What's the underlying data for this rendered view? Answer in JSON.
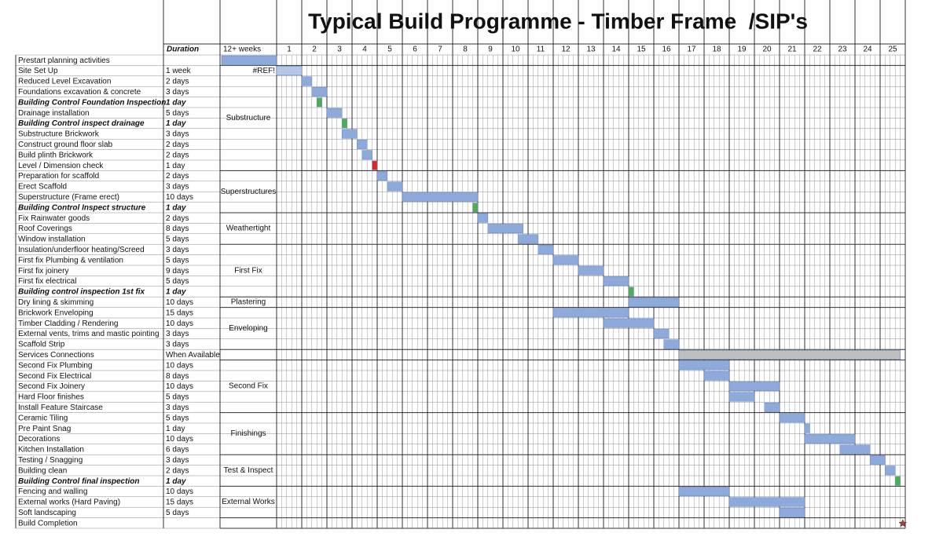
{
  "chart_data": {
    "type": "gantt",
    "title": "Typical Build Programme - Timber Frame  /SIP's",
    "duration_header": "Duration",
    "lead_header": "12+ weeks",
    "xlim": [
      0,
      25
    ],
    "xticks": [
      1,
      2,
      3,
      4,
      5,
      6,
      7,
      8,
      9,
      10,
      11,
      12,
      13,
      14,
      15,
      16,
      17,
      18,
      19,
      20,
      21,
      22,
      23,
      24,
      25
    ],
    "tasks": [
      {
        "name": "Prestart planning activities"
      },
      {
        "name": "Site Set Up",
        "duration": "1 week",
        "note": "#REF!",
        "start": 0,
        "end": 1,
        "color": "#b4c7e7"
      },
      {
        "name": "Reduced Level Excavation",
        "duration": "2 days",
        "start": 1,
        "end": 1.4,
        "color": "#8eaadb"
      },
      {
        "name": "Foundations excavation & concrete",
        "duration": "3 days",
        "start": 1.4,
        "end": 2,
        "color": "#8eaadb"
      },
      {
        "name": "Building Control Foundation Inspection",
        "duration": "1 day",
        "emphasis": true,
        "start": 1.6,
        "end": 1.8,
        "color": "#4caf50"
      },
      {
        "name": "Drainage installation",
        "duration": "5 days",
        "start": 2,
        "end": 2.6,
        "color": "#8eaadb"
      },
      {
        "name": "Building Control inspect drainage",
        "duration": "1 day",
        "emphasis": true,
        "start": 2.6,
        "end": 2.8,
        "color": "#4caf50"
      },
      {
        "name": "Substructure Brickwork",
        "duration": "3 days",
        "start": 2.6,
        "end": 3.2,
        "color": "#8eaadb"
      },
      {
        "name": "Construct ground floor slab",
        "duration": "2 days",
        "start": 3.2,
        "end": 3.6,
        "color": "#8eaadb"
      },
      {
        "name": "Build plinth Brickwork",
        "duration": "2 days",
        "start": 3.4,
        "end": 3.8,
        "color": "#8eaadb"
      },
      {
        "name": "Level / Dimension check",
        "duration": "1 day",
        "start": 3.8,
        "end": 4,
        "color": "#e02424"
      },
      {
        "name": "Preparation for scaffold",
        "duration": "2 days",
        "start": 4,
        "end": 4.4,
        "color": "#8eaadb"
      },
      {
        "name": "Erect Scaffold",
        "duration": "3 days",
        "start": 4.4,
        "end": 5,
        "color": "#8eaadb"
      },
      {
        "name": "Superstructure (Frame erect)",
        "duration": "10 days",
        "start": 5,
        "end": 8,
        "color": "#8eaadb"
      },
      {
        "name": "Building Control Inspect structure",
        "duration": "1 day",
        "emphasis": true,
        "start": 7.8,
        "end": 8,
        "color": "#4caf50"
      },
      {
        "name": "Fix Rainwater goods",
        "duration": "2 days",
        "start": 8,
        "end": 8.4,
        "color": "#8eaadb"
      },
      {
        "name": "Roof Coverings",
        "duration": "8 days",
        "start": 8.4,
        "end": 9.8,
        "color": "#8eaadb"
      },
      {
        "name": "Window installation",
        "duration": "5 days",
        "start": 9.6,
        "end": 10.4,
        "color": "#8eaadb"
      },
      {
        "name": "Insulation/underfloor heating/Screed",
        "duration": "3 days",
        "start": 10.4,
        "end": 11,
        "color": "#8eaadb"
      },
      {
        "name": "First fix Plumbing & ventilation",
        "duration": "5 days",
        "start": 11,
        "end": 12,
        "color": "#8eaadb"
      },
      {
        "name": "First fix joinery",
        "duration": "9 days",
        "start": 12,
        "end": 13,
        "color": "#8eaadb"
      },
      {
        "name": "First fix electrical",
        "duration": "5 days",
        "start": 13,
        "end": 14,
        "color": "#8eaadb"
      },
      {
        "name": "Building control inspection 1st fix",
        "duration": "1 day",
        "emphasis": true,
        "start": 14,
        "end": 14.2,
        "color": "#4caf50"
      },
      {
        "name": "Dry lining & skimming",
        "duration": "10 days",
        "start": 14,
        "end": 16,
        "color": "#8eaadb"
      },
      {
        "name": "Brickwork Enveloping",
        "duration": "15 days",
        "start": 11,
        "end": 14,
        "color": "#8eaadb"
      },
      {
        "name": "Timber Cladding / Rendering",
        "duration": "10 days",
        "start": 13,
        "end": 15,
        "color": "#8eaadb"
      },
      {
        "name": "External vents, trims and mastic pointing",
        "duration": "3 days",
        "start": 15,
        "end": 15.6,
        "color": "#8eaadb"
      },
      {
        "name": "Scaffold Strip",
        "duration": "3 days",
        "start": 15.4,
        "end": 16,
        "color": "#8eaadb"
      },
      {
        "name": "Services Connections",
        "duration": "When Available",
        "start": 16,
        "end": 24.8,
        "color": "#bfbfbf"
      },
      {
        "name": "Second Fix Plumbing",
        "duration": "10 days",
        "start": 16,
        "end": 18,
        "color": "#8eaadb"
      },
      {
        "name": "Second Fix Electrical",
        "duration": "8 days",
        "start": 17,
        "end": 18,
        "color": "#8eaadb"
      },
      {
        "name": "Second Fix Joinery",
        "duration": "10 days",
        "start": 18,
        "end": 20,
        "color": "#8eaadb"
      },
      {
        "name": "Hard Floor finishes",
        "duration": "5 days",
        "start": 18,
        "end": 19,
        "color": "#8eaadb"
      },
      {
        "name": "Install Feature Staircase",
        "duration": "3 days",
        "start": 19.4,
        "end": 20,
        "color": "#8eaadb"
      },
      {
        "name": "Ceramic Tiling",
        "duration": "5 days",
        "start": 20,
        "end": 21,
        "color": "#8eaadb"
      },
      {
        "name": "Pre Paint Snag",
        "duration": "1 day",
        "start": 21,
        "end": 21.2,
        "color": "#8eaadb"
      },
      {
        "name": "Decorations",
        "duration": "10 days",
        "start": 21,
        "end": 23,
        "color": "#8eaadb"
      },
      {
        "name": "Kitchen Installation",
        "duration": "6 days",
        "start": 22.4,
        "end": 23.6,
        "color": "#8eaadb"
      },
      {
        "name": "Testing / Snagging",
        "duration": "3 days",
        "start": 23.6,
        "end": 24.2,
        "color": "#8eaadb"
      },
      {
        "name": "Building clean",
        "duration": "2 days",
        "start": 24.2,
        "end": 24.6,
        "color": "#8eaadb"
      },
      {
        "name": "Building Control final inspection",
        "duration": "1 day",
        "emphasis": true,
        "start": 24.6,
        "end": 24.8,
        "color": "#4caf50"
      },
      {
        "name": "Fencing and walling",
        "duration": "10 days",
        "start": 16,
        "end": 18,
        "color": "#8eaadb"
      },
      {
        "name": "External works (Hard Paving)",
        "duration": "15 days",
        "start": 18,
        "end": 21,
        "color": "#8eaadb"
      },
      {
        "name": "Soft landscaping",
        "duration": "5 days",
        "start": 20,
        "end": 21,
        "color": "#8eaadb"
      },
      {
        "name": "Build Completion",
        "milestone": 24.8,
        "color": "#a0413c"
      }
    ],
    "phases": [
      {
        "label": null,
        "rows": 1
      },
      {
        "label": "Substructure",
        "rows": 10
      },
      {
        "label": "Superstructures",
        "rows": 4
      },
      {
        "label": "Weathertight",
        "rows": 3
      },
      {
        "label": "First Fix",
        "rows": 5
      },
      {
        "label": "Plastering",
        "rows": 1
      },
      {
        "label": "Enveloping",
        "rows": 4
      },
      {
        "label": null,
        "rows": 1
      },
      {
        "label": "Second Fix",
        "rows": 5
      },
      {
        "label": "Finishings",
        "rows": 4
      },
      {
        "label": "Test & Inspect",
        "rows": 3
      },
      {
        "label": "External Works",
        "rows": 3
      },
      {
        "label": null,
        "rows": 1
      }
    ]
  }
}
